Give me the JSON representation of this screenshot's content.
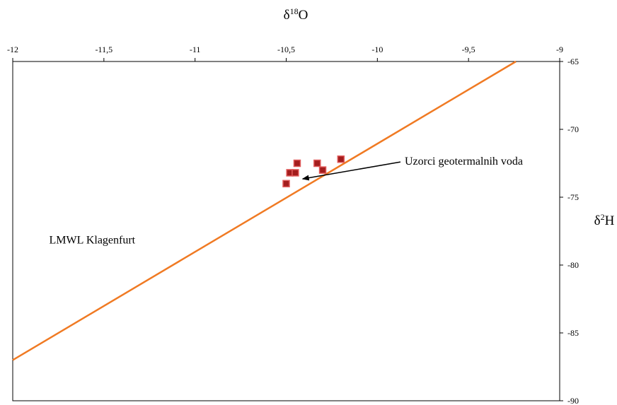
{
  "chart_data": {
    "type": "scatter",
    "x_axis": {
      "label": "δ18O",
      "label_main": "δ",
      "label_sup": "18",
      "label_tail": "O",
      "range": [
        -12,
        -9
      ],
      "ticks": [
        -12,
        -11.5,
        -11,
        -10.5,
        -10,
        -9.5,
        -9
      ],
      "tick_labels": [
        "-12",
        "-11,5",
        "-11",
        "-10,5",
        "-10",
        "-9,5",
        "-9"
      ],
      "position": "top"
    },
    "y_axis": {
      "label": "δ2H",
      "label_main": "δ",
      "label_sup": "2",
      "label_tail": "H",
      "range": [
        -90,
        -65
      ],
      "ticks": [
        -65,
        -70,
        -75,
        -80,
        -85,
        -90
      ],
      "tick_labels": [
        "-65",
        "-70",
        "-75",
        "-80",
        "-85",
        "-90"
      ],
      "position": "right"
    },
    "grid": false,
    "series": [
      {
        "kind": "points",
        "marker": "square",
        "color": "#a31d1d",
        "edge_color": "#e05a5a",
        "points": [
          {
            "x": -10.5,
            "y": -74.0
          },
          {
            "x": -10.48,
            "y": -73.2
          },
          {
            "x": -10.45,
            "y": -73.2
          },
          {
            "x": -10.44,
            "y": -72.5
          },
          {
            "x": -10.33,
            "y": -72.5
          },
          {
            "x": -10.3,
            "y": -73.0
          },
          {
            "x": -10.2,
            "y": -72.2
          }
        ]
      },
      {
        "kind": "line",
        "color": "#f07a23",
        "points": [
          {
            "x": -12.0,
            "y": -87.0
          },
          {
            "x": -9.24,
            "y": -65.0
          }
        ]
      }
    ],
    "annotations": [
      {
        "id": "arrow",
        "text": "Uzorci geotermalnih voda",
        "x": -9.85,
        "y": -72.3,
        "arrow_to": {
          "x": -10.41,
          "y": -73.65
        }
      },
      {
        "id": "lmwl",
        "text": "LMWL Klagenfurt",
        "x": -11.8,
        "y": -78.1
      }
    ]
  }
}
